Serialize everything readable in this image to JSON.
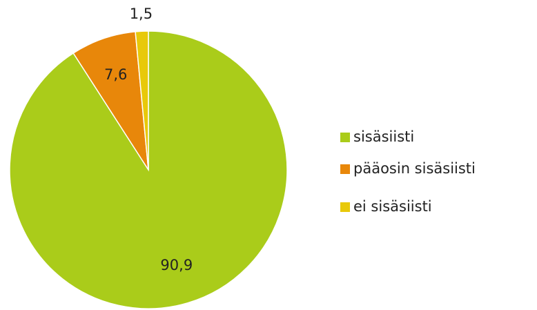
{
  "chart_data": {
    "type": "pie",
    "categories": [
      "sisäsiisti",
      "pääosin sisäsiisti",
      "ei sisäsiisti"
    ],
    "values": [
      90.9,
      7.6,
      1.5
    ],
    "value_labels": [
      "90,9",
      "7,6",
      "1,5"
    ],
    "colors": [
      "#aacc1a",
      "#e8870a",
      "#e8c90a"
    ],
    "legend": "right"
  }
}
